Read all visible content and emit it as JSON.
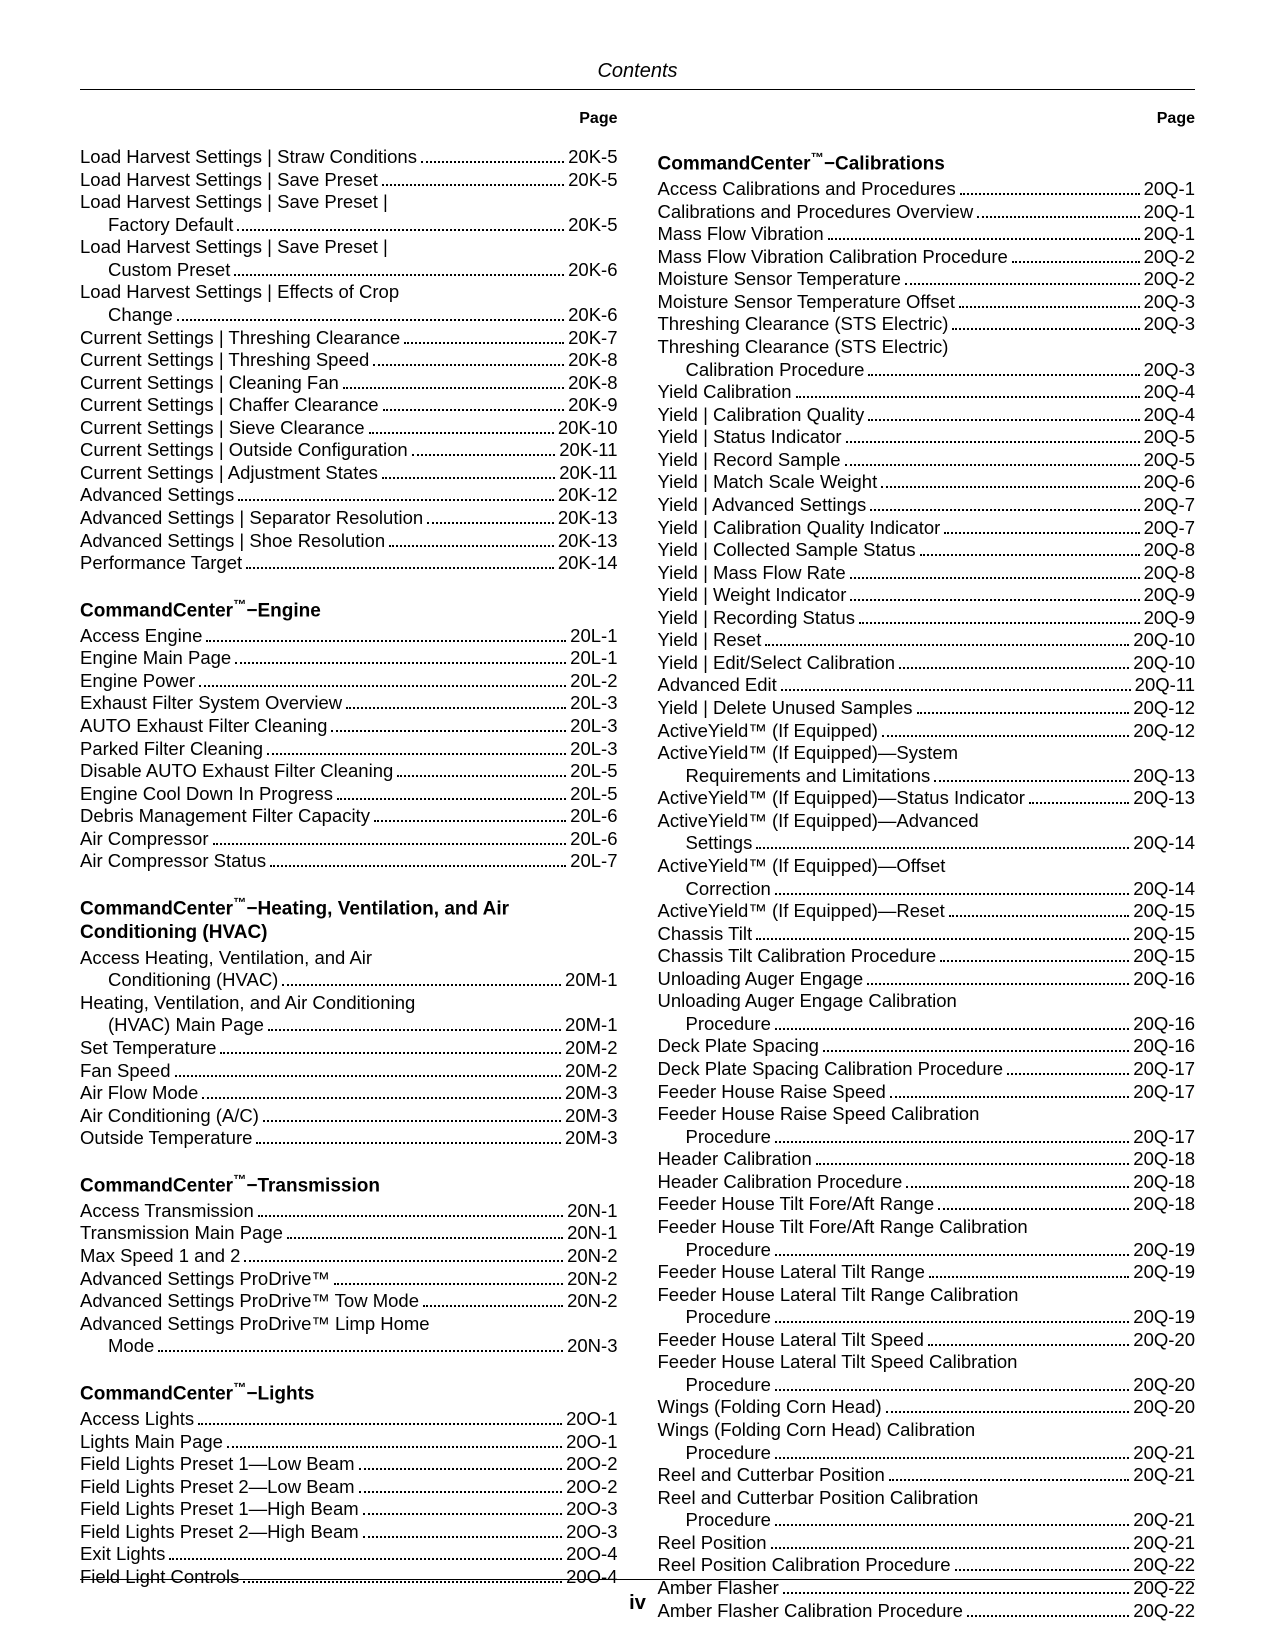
{
  "header": {
    "title": "Contents",
    "pageLabel": "Page"
  },
  "footer": {
    "pageNumber": "iv"
  },
  "left": {
    "initial": [
      {
        "label": "Load Harvest Settings | Straw Conditions",
        "page": "20K-5"
      },
      {
        "label": "Load Harvest Settings | Save Preset",
        "page": "20K-5"
      },
      {
        "label": "Load Harvest Settings | Save Preset |",
        "cont": true
      },
      {
        "label": "Factory Default",
        "page": "20K-5",
        "indent": true
      },
      {
        "label": "Load Harvest Settings | Save Preset |",
        "cont": true
      },
      {
        "label": "Custom Preset",
        "page": "20K-6",
        "indent": true
      },
      {
        "label": "Load Harvest Settings | Effects of Crop",
        "cont": true
      },
      {
        "label": "Change",
        "page": "20K-6",
        "indent": true
      },
      {
        "label": "Current Settings | Threshing Clearance",
        "page": "20K-7"
      },
      {
        "label": "Current Settings | Threshing Speed",
        "page": "20K-8"
      },
      {
        "label": "Current Settings | Cleaning Fan",
        "page": "20K-8"
      },
      {
        "label": "Current Settings | Chaffer Clearance",
        "page": "20K-9"
      },
      {
        "label": "Current Settings | Sieve Clearance",
        "page": "20K-10"
      },
      {
        "label": "Current Settings | Outside Configuration",
        "page": "20K-11"
      },
      {
        "label": "Current Settings | Adjustment States",
        "page": "20K-11"
      },
      {
        "label": "Advanced Settings",
        "page": "20K-12"
      },
      {
        "label": "Advanced Settings | Separator Resolution",
        "page": "20K-13"
      },
      {
        "label": "Advanced Settings | Shoe Resolution",
        "page": "20K-13"
      },
      {
        "label": "Performance Target",
        "page": "20K-14"
      }
    ],
    "sections": [
      {
        "title": "CommandCenter™−Engine",
        "entries": [
          {
            "label": "Access Engine",
            "page": "20L-1"
          },
          {
            "label": "Engine Main Page",
            "page": "20L-1"
          },
          {
            "label": "Engine Power",
            "page": "20L-2"
          },
          {
            "label": "Exhaust Filter System Overview",
            "page": "20L-3"
          },
          {
            "label": "AUTO Exhaust Filter Cleaning",
            "page": "20L-3"
          },
          {
            "label": "Parked Filter Cleaning",
            "page": "20L-3"
          },
          {
            "label": "Disable AUTO Exhaust Filter Cleaning",
            "page": "20L-5"
          },
          {
            "label": "Engine Cool Down In Progress",
            "page": "20L-5"
          },
          {
            "label": "Debris Management Filter Capacity",
            "page": "20L-6"
          },
          {
            "label": "Air Compressor",
            "page": "20L-6"
          },
          {
            "label": "Air Compressor Status",
            "page": "20L-7"
          }
        ]
      },
      {
        "title": "CommandCenter™−Heating, Ventilation, and Air Conditioning (HVAC)",
        "entries": [
          {
            "label": "Access Heating, Ventilation, and Air",
            "cont": true
          },
          {
            "label": "Conditioning (HVAC)",
            "page": "20M-1",
            "indent": true
          },
          {
            "label": "Heating, Ventilation, and Air Conditioning",
            "cont": true
          },
          {
            "label": "(HVAC) Main Page",
            "page": "20M-1",
            "indent": true
          },
          {
            "label": "Set Temperature",
            "page": "20M-2"
          },
          {
            "label": "Fan Speed",
            "page": "20M-2"
          },
          {
            "label": "Air Flow Mode",
            "page": "20M-3"
          },
          {
            "label": "Air Conditioning (A/C)",
            "page": "20M-3"
          },
          {
            "label": "Outside Temperature",
            "page": "20M-3"
          }
        ]
      },
      {
        "title": "CommandCenter™−Transmission",
        "entries": [
          {
            "label": "Access Transmission",
            "page": "20N-1"
          },
          {
            "label": "Transmission Main Page",
            "page": "20N-1"
          },
          {
            "label": "Max Speed 1 and 2",
            "page": "20N-2"
          },
          {
            "label": "Advanced Settings ProDrive™",
            "page": "20N-2"
          },
          {
            "label": "Advanced Settings ProDrive™ Tow Mode",
            "page": "20N-2"
          },
          {
            "label": "Advanced Settings ProDrive™ Limp Home",
            "cont": true
          },
          {
            "label": "Mode",
            "page": "20N-3",
            "indent": true
          }
        ]
      },
      {
        "title": "CommandCenter™−Lights",
        "entries": [
          {
            "label": "Access Lights",
            "page": "20O-1"
          },
          {
            "label": "Lights Main Page",
            "page": "20O-1"
          },
          {
            "label": "Field Lights Preset 1—Low Beam",
            "page": "20O-2"
          },
          {
            "label": "Field Lights Preset 2—Low Beam",
            "page": "20O-2"
          },
          {
            "label": "Field Lights Preset 1—High Beam",
            "page": "20O-3"
          },
          {
            "label": "Field Lights Preset 2—High Beam",
            "page": "20O-3"
          },
          {
            "label": "Exit Lights",
            "page": "20O-4"
          },
          {
            "label": "Field Light Controls",
            "page": "20O-4"
          }
        ]
      }
    ]
  },
  "right": {
    "sections": [
      {
        "title": "CommandCenter™−Calibrations",
        "entries": [
          {
            "label": "Access Calibrations and Procedures",
            "page": "20Q-1"
          },
          {
            "label": "Calibrations and Procedures Overview",
            "page": "20Q-1"
          },
          {
            "label": "Mass Flow Vibration",
            "page": "20Q-1"
          },
          {
            "label": "Mass Flow Vibration Calibration Procedure",
            "page": "20Q-2"
          },
          {
            "label": "Moisture Sensor Temperature",
            "page": "20Q-2"
          },
          {
            "label": "Moisture Sensor Temperature Offset",
            "page": "20Q-3"
          },
          {
            "label": "Threshing Clearance (STS Electric)",
            "page": "20Q-3"
          },
          {
            "label": "Threshing Clearance (STS Electric)",
            "cont": true
          },
          {
            "label": "Calibration Procedure",
            "page": "20Q-3",
            "indent": true
          },
          {
            "label": "Yield Calibration",
            "page": "20Q-4"
          },
          {
            "label": "Yield | Calibration Quality",
            "page": "20Q-4"
          },
          {
            "label": "Yield | Status Indicator",
            "page": "20Q-5"
          },
          {
            "label": "Yield | Record Sample",
            "page": "20Q-5"
          },
          {
            "label": "Yield | Match Scale Weight",
            "page": "20Q-6"
          },
          {
            "label": "Yield | Advanced Settings",
            "page": "20Q-7"
          },
          {
            "label": "Yield | Calibration Quality Indicator",
            "page": "20Q-7"
          },
          {
            "label": "Yield | Collected Sample Status",
            "page": "20Q-8"
          },
          {
            "label": "Yield | Mass Flow Rate",
            "page": "20Q-8"
          },
          {
            "label": "Yield | Weight Indicator",
            "page": "20Q-9"
          },
          {
            "label": "Yield | Recording Status",
            "page": "20Q-9"
          },
          {
            "label": "Yield | Reset",
            "page": "20Q-10"
          },
          {
            "label": "Yield | Edit/Select Calibration",
            "page": "20Q-10"
          },
          {
            "label": "Advanced Edit",
            "page": "20Q-11"
          },
          {
            "label": "Yield | Delete Unused Samples",
            "page": "20Q-12"
          },
          {
            "label": "ActiveYield™ (If Equipped)",
            "page": "20Q-12"
          },
          {
            "label": "ActiveYield™ (If Equipped)—System",
            "cont": true
          },
          {
            "label": "Requirements and Limitations",
            "page": "20Q-13",
            "indent": true
          },
          {
            "label": "ActiveYield™ (If Equipped)—Status Indicator",
            "page": "20Q-13"
          },
          {
            "label": "ActiveYield™ (If Equipped)—Advanced",
            "cont": true
          },
          {
            "label": "Settings",
            "page": "20Q-14",
            "indent": true
          },
          {
            "label": "ActiveYield™ (If Equipped)—Offset",
            "cont": true
          },
          {
            "label": "Correction",
            "page": "20Q-14",
            "indent": true
          },
          {
            "label": "ActiveYield™ (If Equipped)—Reset",
            "page": "20Q-15"
          },
          {
            "label": "Chassis Tilt",
            "page": "20Q-15"
          },
          {
            "label": "Chassis Tilt Calibration Procedure",
            "page": "20Q-15"
          },
          {
            "label": "Unloading Auger Engage",
            "page": "20Q-16"
          },
          {
            "label": "Unloading Auger Engage Calibration",
            "cont": true
          },
          {
            "label": "Procedure",
            "page": "20Q-16",
            "indent": true
          },
          {
            "label": "Deck Plate Spacing",
            "page": "20Q-16"
          },
          {
            "label": "Deck Plate Spacing Calibration Procedure",
            "page": "20Q-17"
          },
          {
            "label": "Feeder House Raise Speed",
            "page": "20Q-17"
          },
          {
            "label": "Feeder House Raise Speed Calibration",
            "cont": true
          },
          {
            "label": "Procedure",
            "page": "20Q-17",
            "indent": true
          },
          {
            "label": "Header Calibration",
            "page": "20Q-18"
          },
          {
            "label": "Header Calibration Procedure",
            "page": "20Q-18"
          },
          {
            "label": "Feeder House Tilt Fore/Aft Range",
            "page": "20Q-18"
          },
          {
            "label": "Feeder House Tilt Fore/Aft Range Calibration",
            "cont": true
          },
          {
            "label": "Procedure",
            "page": "20Q-19",
            "indent": true
          },
          {
            "label": "Feeder House Lateral Tilt Range",
            "page": "20Q-19"
          },
          {
            "label": "Feeder House Lateral Tilt Range Calibration",
            "cont": true
          },
          {
            "label": "Procedure",
            "page": "20Q-19",
            "indent": true
          },
          {
            "label": "Feeder House Lateral Tilt Speed",
            "page": "20Q-20"
          },
          {
            "label": "Feeder House Lateral Tilt Speed Calibration",
            "cont": true
          },
          {
            "label": "Procedure",
            "page": "20Q-20",
            "indent": true
          },
          {
            "label": "Wings (Folding Corn Head)",
            "page": "20Q-20"
          },
          {
            "label": "Wings (Folding Corn Head) Calibration",
            "cont": true
          },
          {
            "label": "Procedure",
            "page": "20Q-21",
            "indent": true
          },
          {
            "label": "Reel and Cutterbar Position",
            "page": "20Q-21"
          },
          {
            "label": "Reel and Cutterbar Position Calibration",
            "cont": true
          },
          {
            "label": "Procedure",
            "page": "20Q-21",
            "indent": true
          },
          {
            "label": "Reel Position",
            "page": "20Q-21"
          },
          {
            "label": "Reel Position Calibration Procedure",
            "page": "20Q-22"
          },
          {
            "label": "Amber Flasher",
            "page": "20Q-22"
          },
          {
            "label": "Amber Flasher Calibration Procedure",
            "page": "20Q-22"
          }
        ]
      }
    ]
  }
}
